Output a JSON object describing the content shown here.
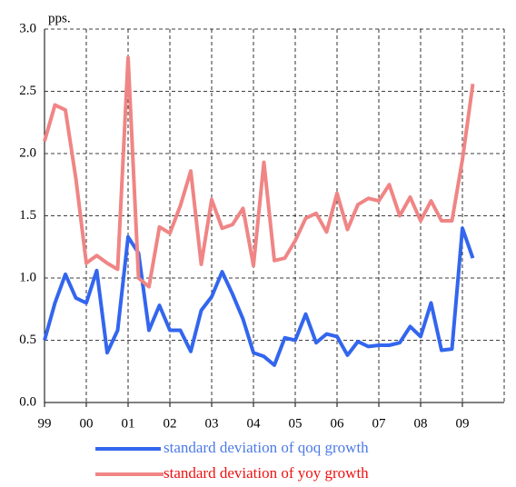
{
  "chart_data": {
    "type": "line",
    "unit_label": "pps.",
    "x": [
      1999,
      1999.25,
      1999.5,
      1999.75,
      2000,
      2000.25,
      2000.5,
      2000.75,
      2001,
      2001.25,
      2001.5,
      2001.75,
      2002,
      2002.25,
      2002.5,
      2002.75,
      2003,
      2003.25,
      2003.5,
      2003.75,
      2004,
      2004.25,
      2004.5,
      2004.75,
      2005,
      2005.25,
      2005.5,
      2005.75,
      2006,
      2006.25,
      2006.5,
      2006.75,
      2007,
      2007.25,
      2007.5,
      2007.75,
      2008,
      2008.25,
      2008.5,
      2008.75,
      2009,
      2009.25
    ],
    "series": [
      {
        "name": "standard deviation of qoq growth",
        "color": "#3366ee",
        "text_color": "#4d7ae6",
        "values": [
          0.5,
          0.8,
          1.03,
          0.84,
          0.8,
          1.06,
          0.4,
          0.58,
          1.33,
          1.2,
          0.58,
          0.78,
          0.58,
          0.58,
          0.41,
          0.74,
          0.85,
          1.05,
          0.87,
          0.67,
          0.4,
          0.37,
          0.3,
          0.52,
          0.5,
          0.71,
          0.48,
          0.55,
          0.53,
          0.38,
          0.49,
          0.45,
          0.46,
          0.46,
          0.48,
          0.61,
          0.53,
          0.8,
          0.42,
          0.43,
          1.4,
          1.16
        ]
      },
      {
        "name": "standard deviation of yoy growth",
        "color": "#f08585",
        "text_color": "#ee1111",
        "values": [
          2.1,
          2.39,
          2.35,
          1.8,
          1.12,
          1.18,
          1.12,
          1.07,
          2.77,
          1.0,
          0.93,
          1.41,
          1.36,
          1.58,
          1.86,
          1.11,
          1.63,
          1.4,
          1.43,
          1.56,
          1.1,
          1.93,
          1.14,
          1.16,
          1.3,
          1.48,
          1.52,
          1.37,
          1.68,
          1.39,
          1.59,
          1.64,
          1.62,
          1.75,
          1.5,
          1.65,
          1.46,
          1.62,
          1.46,
          1.46,
          1.95,
          2.56
        ]
      }
    ],
    "xlim": [
      1999,
      2010
    ],
    "xticks": [
      {
        "value": 1999,
        "label": "99"
      },
      {
        "value": 2000,
        "label": "00"
      },
      {
        "value": 2001,
        "label": "01"
      },
      {
        "value": 2002,
        "label": "02"
      },
      {
        "value": 2003,
        "label": "03"
      },
      {
        "value": 2004,
        "label": "04"
      },
      {
        "value": 2005,
        "label": "05"
      },
      {
        "value": 2006,
        "label": "06"
      },
      {
        "value": 2007,
        "label": "07"
      },
      {
        "value": 2008,
        "label": "08"
      },
      {
        "value": 2009,
        "label": "09"
      }
    ],
    "ylim": [
      0,
      3
    ],
    "yticks": [
      {
        "value": 0,
        "label": "0.0"
      },
      0.5,
      {
        "value": 1,
        "label": "1.0"
      },
      1.5,
      {
        "value": 2,
        "label": "2.0"
      },
      2.5,
      {
        "value": 3,
        "label": "3.0"
      }
    ],
    "grid": true
  }
}
